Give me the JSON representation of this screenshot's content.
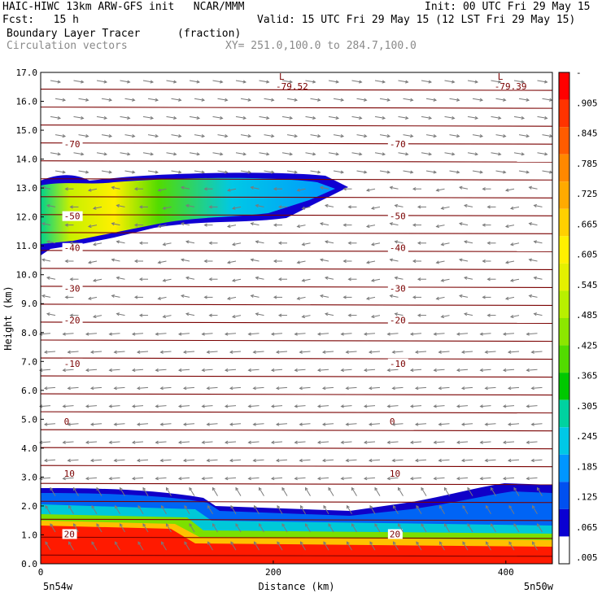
{
  "header": {
    "line1_left": "HAIC-HIWC 13km ARW-GFS init   NCAR/MMM",
    "line1_right": "Init: 00 UTC Fri 29 May 15",
    "line2_left": "Fcst:   15 h",
    "line2_right": "Valid: 15 UTC Fri 29 May 15 (12 LST Fri 29 May 15)",
    "field_name": "Boundary Layer Tracer",
    "field_units": "(fraction)",
    "overlay_name": "Circulation vectors",
    "cross_section": "XY= 251.0,100.0 to 284.7,100.0"
  },
  "colors": {
    "contour": "#7a0000",
    "vector": "#7a7a7a",
    "frame": "#000000"
  },
  "chart_data": {
    "type": "heatmap",
    "xlabel": "Distance (km)",
    "ylabel": "Height (km)",
    "xlim": [
      0,
      440
    ],
    "ylim": [
      0,
      17
    ],
    "x_ticks": [
      0,
      200,
      400
    ],
    "y_ticks": [
      "0.0",
      "1.0",
      "2.0",
      "3.0",
      "4.0",
      "5.0",
      "6.0",
      "7.0",
      "8.0",
      "9.0",
      "10.0",
      "11.0",
      "12.0",
      "13.0",
      "14.0",
      "15.0",
      "16.0",
      "17.0"
    ],
    "x_end_labels": [
      "5n54w",
      "5n50w"
    ],
    "colorbar_labels": [
      "-",
      ".905",
      ".845",
      ".785",
      ".725",
      ".665",
      ".605",
      ".545",
      ".485",
      ".425",
      ".365",
      ".305",
      ".245",
      ".185",
      ".125",
      ".065",
      ".005"
    ],
    "colorbar_colors": [
      "#ff0000",
      "#ff3300",
      "#ff5c00",
      "#ff8800",
      "#ffaa00",
      "#ffd000",
      "#fff000",
      "#e4f000",
      "#b8f000",
      "#8ce600",
      "#52dc00",
      "#00c800",
      "#00d2a0",
      "#00c8e6",
      "#0096ff",
      "#0050f0",
      "#0a00d2",
      "#ffffff"
    ],
    "isotherms": [
      {
        "label": "-70",
        "height": 14.5
      },
      {
        "label": "-50",
        "height": 12.0
      },
      {
        "label": "-40",
        "height": 10.9
      },
      {
        "label": "-30",
        "height": 9.5
      },
      {
        "label": "-20",
        "height": 8.4
      },
      {
        "label": "-10",
        "height": 6.9
      },
      {
        "label": "0",
        "height": 4.9
      },
      {
        "label": "10",
        "height": 3.1
      },
      {
        "label": "20",
        "height": 1.0
      }
    ],
    "minima": [
      {
        "marker": "L",
        "value": "-79.52",
        "x": 205
      },
      {
        "marker": "L",
        "value": "-79.39",
        "x": 393
      }
    ]
  }
}
